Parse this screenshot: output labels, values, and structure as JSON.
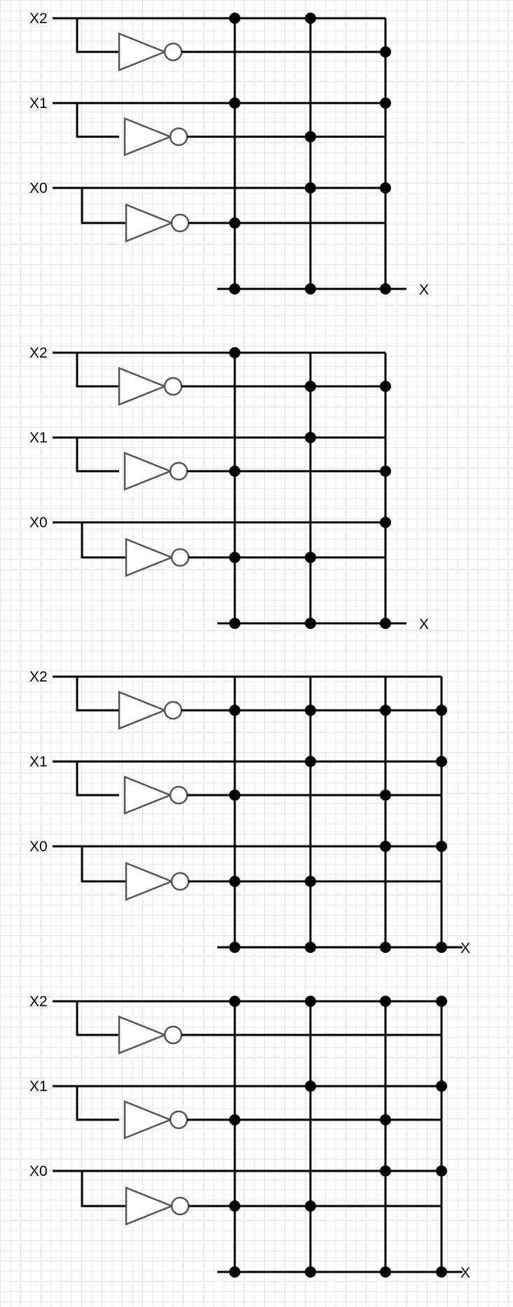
{
  "colors": {
    "wire": "#000000",
    "gate": "#555555",
    "grid": "#e3e3f1"
  },
  "panels": [
    {
      "inputs": [
        "X2",
        "X1",
        "X0"
      ],
      "output": "X",
      "columns": [
        {
          "dots": [
            "x2",
            "x1",
            "nx0"
          ]
        },
        {
          "dots": [
            "x2",
            "nx1",
            "x0"
          ]
        },
        {
          "dots": [
            "nx2",
            "x1",
            "x0"
          ]
        }
      ]
    },
    {
      "inputs": [
        "X2",
        "X1",
        "X0"
      ],
      "output": "X",
      "columns": [
        {
          "dots": [
            "x2",
            "nx1",
            "nx0"
          ]
        },
        {
          "dots": [
            "nx2",
            "x1",
            "nx0"
          ]
        },
        {
          "dots": [
            "nx2",
            "nx1",
            "x0"
          ]
        }
      ]
    },
    {
      "inputs": [
        "X2",
        "X1",
        "X0"
      ],
      "output": "X",
      "columns": [
        {
          "dots": [
            "nx2",
            "nx1",
            "nx0"
          ]
        },
        {
          "dots": [
            "nx2",
            "x1",
            "nx0"
          ]
        },
        {
          "dots": [
            "nx2",
            "nx1",
            "x0"
          ]
        },
        {
          "dots": [
            "nx2",
            "x1",
            "x0"
          ]
        }
      ]
    },
    {
      "inputs": [
        "X2",
        "X1",
        "X0"
      ],
      "output": "X",
      "columns": [
        {
          "dots": [
            "x2",
            "nx1",
            "nx0"
          ]
        },
        {
          "dots": [
            "x2",
            "x1",
            "nx0"
          ]
        },
        {
          "dots": [
            "x2",
            "nx1",
            "x0"
          ]
        },
        {
          "dots": [
            "x2",
            "x1",
            "x0"
          ]
        }
      ]
    }
  ]
}
